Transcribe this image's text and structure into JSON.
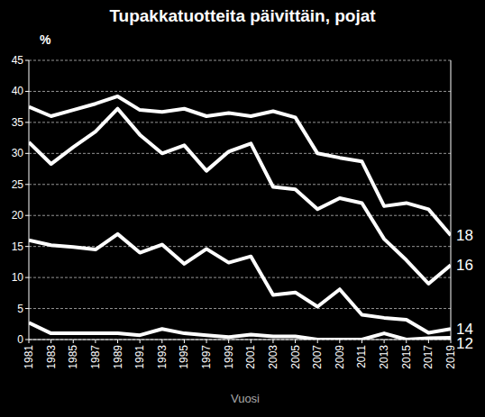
{
  "chart_data": {
    "type": "line",
    "title": "Tupakkatuotteita päivittäin, pojat",
    "y_label": "%",
    "x_label": "Vuosi",
    "x": [
      1981,
      1983,
      1985,
      1987,
      1989,
      1991,
      1993,
      1995,
      1997,
      1999,
      2001,
      2003,
      2005,
      2007,
      2009,
      2011,
      2013,
      2015,
      2017,
      2019
    ],
    "xlim": [
      1981,
      2019
    ],
    "xticks": [
      1981,
      1983,
      1985,
      1987,
      1989,
      1991,
      1993,
      1995,
      1997,
      1999,
      2001,
      2003,
      2005,
      2007,
      2009,
      2011,
      2013,
      2015,
      2017,
      2019
    ],
    "ylim": [
      0,
      45
    ],
    "yticks": [
      0,
      5,
      10,
      15,
      20,
      25,
      30,
      35,
      40,
      45
    ],
    "grid": true,
    "series": [
      {
        "name": "18",
        "color": "#ffffff",
        "values": [
          37.5,
          36,
          37,
          38,
          39.2,
          37,
          36.7,
          37.2,
          36,
          36.5,
          36,
          36.8,
          35.8,
          30,
          29.3,
          28.7,
          21.5,
          22,
          21,
          16.8
        ]
      },
      {
        "name": "16",
        "color": "#ffffff",
        "values": [
          31.8,
          28.3,
          31,
          33.5,
          37.2,
          33,
          30,
          31.3,
          27.2,
          30.3,
          31.6,
          24.6,
          24.2,
          21,
          22.8,
          22,
          16.2,
          12.8,
          9,
          12
        ]
      },
      {
        "name": "14",
        "color": "#ffffff",
        "values": [
          16,
          15.2,
          14.9,
          14.5,
          17,
          14,
          15.3,
          12.2,
          14.6,
          12.4,
          13.4,
          7.2,
          7.6,
          5.3,
          8.1,
          4,
          3.5,
          3.2,
          1.1,
          1.7
        ]
      },
      {
        "name": "12",
        "color": "#ffffff",
        "values": [
          2.7,
          1,
          1,
          1,
          1,
          0.7,
          1.7,
          1,
          0.7,
          0.4,
          0.8,
          0.5,
          0.5,
          0,
          0,
          0,
          1,
          0,
          0.2,
          0.3
        ]
      }
    ]
  }
}
